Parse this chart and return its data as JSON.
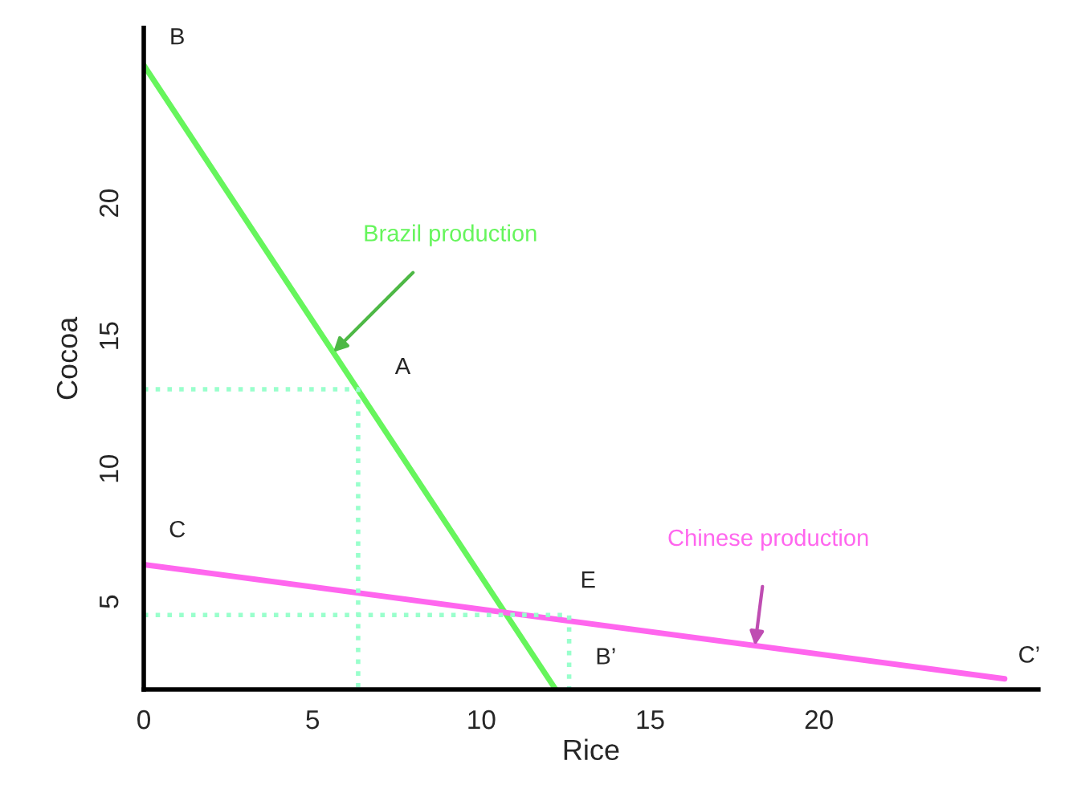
{
  "chart_data": {
    "type": "line",
    "xlabel": "Rice",
    "ylabel": "Cocoa",
    "xlim": [
      0,
      26.5
    ],
    "ylim": [
      1.7,
      26.6
    ],
    "xticks": [
      0,
      5,
      10,
      15,
      20
    ],
    "yticks": [
      5,
      10,
      15,
      20
    ],
    "grid": false,
    "legend": false,
    "marker": "none",
    "series": [
      {
        "name": "Brazil production",
        "color": "#66f55c",
        "x": [
          0,
          12.2
        ],
        "values": [
          25.2,
          1.7
        ],
        "line_style": "solid"
      },
      {
        "name": "Chinese production",
        "color": "#ff66ee",
        "x": [
          0,
          25.5
        ],
        "values": [
          6.4,
          2.1
        ],
        "line_style": "solid"
      },
      {
        "color": "#99ffcc",
        "x": [
          0,
          6.35,
          6.35
        ],
        "values": [
          13,
          13,
          1.7
        ],
        "line_style": "dotted"
      },
      {
        "color": "#99ffcc",
        "x": [
          0,
          12.6,
          12.6
        ],
        "values": [
          4.5,
          4.5,
          1.7
        ],
        "line_style": "dotted"
      }
    ],
    "annotations": [
      {
        "text": "B",
        "x": 0,
        "y": 25.2
      },
      {
        "text": "A",
        "x": 6.35,
        "y": 13
      },
      {
        "text": "C",
        "x": 0,
        "y": 6.4
      },
      {
        "text": "E",
        "x": 12.6,
        "y": 4.5
      },
      {
        "text": "B’",
        "x": 12.2,
        "y": 1.7
      },
      {
        "text": "C’",
        "x": 25.5,
        "y": 2.1
      }
    ]
  }
}
